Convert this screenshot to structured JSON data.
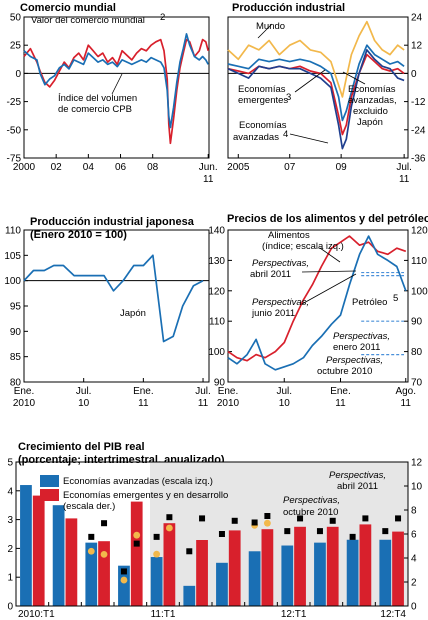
{
  "colors": {
    "blue": "#1a6fb4",
    "red": "#d8202c",
    "gold": "#f2b84b",
    "black": "#000000",
    "navy": "#1f3f8f",
    "shade": "#e6e6e6",
    "dash": "#4a90d9"
  },
  "chart_data": [
    {
      "id": "trade",
      "type": "line",
      "title": "Comercio mundial",
      "xlabel": "",
      "ylabel": "",
      "xlim": [
        2000,
        2011.5
      ],
      "ylim": [
        -75,
        50
      ],
      "y_ticks": [
        "50",
        "25",
        "0",
        "-25",
        "-50",
        "-75"
      ],
      "x_ticks": [
        "2000",
        "02",
        "04",
        "06",
        "08",
        "Jun."
      ],
      "x_ticks_line2": [
        "11"
      ],
      "grid": false,
      "series": [
        {
          "name": "Valor del comercio mundial",
          "color": "#d8202c",
          "x": [
            2000,
            2000.4,
            2000.8,
            2001,
            2001.3,
            2001.6,
            2001.9,
            2002.2,
            2002.5,
            2002.8,
            2003.1,
            2003.4,
            2003.7,
            2004,
            2004.3,
            2004.6,
            2004.9,
            2005.2,
            2005.5,
            2005.8,
            2006.1,
            2006.4,
            2006.7,
            2007,
            2007.3,
            2007.6,
            2007.9,
            2008.2,
            2008.5,
            2008.7,
            2008.9,
            2009,
            2009.1,
            2009.3,
            2009.5,
            2009.7,
            2009.9,
            2010.1,
            2010.3,
            2010.6,
            2010.9,
            2011.1,
            2011.3,
            2011.45
          ],
          "y": [
            15,
            22,
            10,
            2,
            -8,
            -12,
            -6,
            2,
            10,
            5,
            14,
            18,
            12,
            25,
            20,
            15,
            18,
            10,
            14,
            8,
            20,
            16,
            12,
            18,
            22,
            20,
            25,
            28,
            30,
            20,
            -5,
            -45,
            -62,
            -40,
            -15,
            5,
            18,
            30,
            28,
            15,
            20,
            30,
            28,
            20
          ]
        },
        {
          "name": "Índice del volumen de comercio CPB",
          "color": "#1a6fb4",
          "x": [
            2000,
            2000.4,
            2000.8,
            2001,
            2001.3,
            2001.6,
            2001.9,
            2002.2,
            2002.5,
            2002.8,
            2003.1,
            2003.4,
            2003.7,
            2004,
            2004.3,
            2004.6,
            2004.9,
            2005.2,
            2005.5,
            2005.8,
            2006.1,
            2006.4,
            2006.7,
            2007,
            2007.3,
            2007.6,
            2007.9,
            2008.2,
            2008.5,
            2008.7,
            2008.9,
            2009,
            2009.1,
            2009.3,
            2009.5,
            2009.7,
            2009.9,
            2010.1,
            2010.3,
            2010.6,
            2010.9,
            2011.1,
            2011.3,
            2011.45
          ],
          "y": [
            20,
            15,
            12,
            0,
            -10,
            -5,
            -2,
            5,
            8,
            4,
            12,
            10,
            8,
            18,
            14,
            10,
            12,
            8,
            10,
            6,
            12,
            10,
            8,
            10,
            12,
            10,
            14,
            12,
            10,
            5,
            -15,
            -38,
            -48,
            -30,
            -8,
            10,
            22,
            35,
            25,
            15,
            12,
            15,
            12,
            8
          ]
        }
      ],
      "annotations": [
        "Valor del comercio mundial",
        "2",
        "Índice del volumen",
        "de comercio CPB"
      ]
    },
    {
      "id": "ip",
      "type": "line",
      "title": "Producción industrial",
      "xlabel": "",
      "ylabel": "",
      "xlim": [
        2004.6,
        2011.6
      ],
      "ylim": [
        -36,
        24
      ],
      "y_ticks": [
        "24",
        "12",
        "0",
        "-12",
        "-24",
        "-36"
      ],
      "x_ticks": [
        "2005",
        "07",
        "09",
        "Jul."
      ],
      "x_ticks_line2": [
        "11"
      ],
      "grid": false,
      "series": [
        {
          "name": "Mundo",
          "color": "#1a6fb4",
          "x": [
            2004.6,
            2005,
            2005.4,
            2005.8,
            2006.2,
            2006.6,
            2007,
            2007.4,
            2007.8,
            2008.2,
            2008.6,
            2008.9,
            2009.05,
            2009.2,
            2009.4,
            2009.7,
            2010,
            2010.3,
            2010.6,
            2010.9,
            2011.2,
            2011.45
          ],
          "y": [
            4,
            3,
            2,
            6,
            5,
            6,
            5,
            6,
            5,
            3,
            0,
            -10,
            -20,
            -16,
            -8,
            4,
            12,
            8,
            6,
            4,
            5,
            3
          ]
        },
        {
          "name": "Economías emergentes",
          "color": "#f2b84b",
          "x": [
            2004.6,
            2005,
            2005.4,
            2005.8,
            2006.2,
            2006.6,
            2007,
            2007.4,
            2007.8,
            2008.2,
            2008.6,
            2008.9,
            2009.05,
            2009.2,
            2009.4,
            2009.7,
            2010,
            2010.3,
            2010.6,
            2010.9,
            2011.2,
            2011.45
          ],
          "y": [
            10,
            6,
            12,
            10,
            14,
            8,
            12,
            14,
            10,
            9,
            5,
            -5,
            -10,
            -2,
            8,
            16,
            22,
            14,
            10,
            8,
            12,
            10
          ]
        },
        {
          "name": "Economías avanzadas, excluido Japón",
          "color": "#d8202c",
          "x": [
            2004.6,
            2005,
            2005.4,
            2005.8,
            2006.2,
            2006.6,
            2007,
            2007.4,
            2007.8,
            2008.2,
            2008.6,
            2008.9,
            2009.05,
            2009.2,
            2009.4,
            2009.7,
            2010,
            2010.3,
            2010.6,
            2010.9,
            2011.2,
            2011.45
          ],
          "y": [
            2,
            1,
            0,
            3,
            2,
            3,
            2,
            3,
            1,
            0,
            -4,
            -18,
            -26,
            -22,
            -10,
            0,
            8,
            5,
            2,
            1,
            2,
            0
          ]
        },
        {
          "name": "Economías avanzadas",
          "color": "#1f3f8f",
          "x": [
            2004.6,
            2005,
            2005.4,
            2005.8,
            2006.2,
            2006.6,
            2007,
            2007.4,
            2007.8,
            2008.2,
            2008.6,
            2008.9,
            2009.05,
            2009.2,
            2009.4,
            2009.7,
            2010,
            2010.3,
            2010.6,
            2010.9,
            2011.2,
            2011.45
          ],
          "y": [
            2,
            0,
            -2,
            3,
            2,
            3,
            2,
            2,
            0,
            -2,
            -6,
            -22,
            -32,
            -28,
            -14,
            0,
            10,
            6,
            3,
            2,
            -2,
            -3
          ]
        }
      ],
      "annotations": [
        "Mundo",
        "Economías",
        "emergentes",
        "3",
        "Economías",
        "avanzadas",
        "4",
        "Economías",
        "avanzadas,",
        "excluido",
        "Japón"
      ]
    },
    {
      "id": "jpn",
      "type": "line",
      "title": "Producción industrial japonesa",
      "subtitle": "(Enero 2010 = 100)",
      "xlabel": "",
      "ylabel": "",
      "xlim": [
        2010.0,
        2011.55
      ],
      "ylim": [
        80,
        110
      ],
      "y_ticks": [
        "110",
        "105",
        "100",
        "95",
        "90",
        "85",
        "80"
      ],
      "x_ticks": [
        "Ene.",
        "Jul.",
        "Ene.",
        "Jul."
      ],
      "x_ticks_line2": [
        "2010",
        "10",
        "11",
        "11"
      ],
      "grid": false,
      "series": [
        {
          "name": "Japón",
          "color": "#1a6fb4",
          "x": [
            2010.0,
            2010.08,
            2010.17,
            2010.25,
            2010.33,
            2010.42,
            2010.5,
            2010.58,
            2010.67,
            2010.75,
            2010.83,
            2010.92,
            2011.0,
            2011.08,
            2011.17,
            2011.25,
            2011.33,
            2011.42,
            2011.5
          ],
          "y": [
            100,
            102,
            102,
            103,
            103,
            101,
            101,
            101,
            101,
            98,
            100,
            103,
            103,
            105,
            88,
            89,
            95,
            99,
            100
          ]
        }
      ],
      "annotations": [
        "Japón"
      ]
    },
    {
      "id": "food",
      "type": "line",
      "title": "Precios de los alimentos y del petróleo",
      "xlabel": "",
      "ylabel": "",
      "xlim": [
        2010.0,
        2011.6
      ],
      "ylim_left": [
        90,
        140
      ],
      "ylim_right": [
        70,
        120
      ],
      "y_ticks_left": [
        "140",
        "130",
        "120",
        "110",
        "100",
        "90"
      ],
      "y_ticks_right": [
        "120",
        "110",
        "100",
        "90",
        "80",
        "70"
      ],
      "x_ticks": [
        "Ene.",
        "Jul.",
        "Ene.",
        "Ago."
      ],
      "x_ticks_line2": [
        "2010",
        "10",
        "11",
        "11"
      ],
      "grid": false,
      "series": [
        {
          "name": "Alimentos (índice; escala izq.)",
          "color": "#d8202c",
          "axis": "left",
          "x": [
            2010.0,
            2010.08,
            2010.17,
            2010.25,
            2010.33,
            2010.42,
            2010.5,
            2010.58,
            2010.67,
            2010.75,
            2010.83,
            2010.92,
            2011.0,
            2011.08,
            2011.17,
            2011.25,
            2011.33,
            2011.42,
            2011.5,
            2011.58
          ],
          "y": [
            100,
            98,
            97,
            99,
            98,
            100,
            103,
            110,
            117,
            122,
            128,
            134,
            136,
            138,
            135,
            136,
            133,
            132,
            134,
            133
          ]
        },
        {
          "name": "Petróleo",
          "color": "#1a6fb4",
          "axis": "right",
          "x": [
            2010.0,
            2010.08,
            2010.17,
            2010.25,
            2010.33,
            2010.42,
            2010.5,
            2010.58,
            2010.67,
            2010.75,
            2010.83,
            2010.92,
            2011.0,
            2011.08,
            2011.17,
            2011.25,
            2011.33,
            2011.42,
            2011.5,
            2011.58
          ],
          "y": [
            78,
            76,
            79,
            84,
            76,
            74,
            75,
            76,
            78,
            82,
            85,
            89,
            92,
            102,
            112,
            118,
            112,
            110,
            108,
            100
          ]
        }
      ],
      "dashed_lines": [
        {
          "label": "Perspectivas, abril 2011",
          "axis": "right",
          "y": 106
        },
        {
          "label": "Perspectivas, junio 2011",
          "axis": "right",
          "y": 105
        },
        {
          "label": "Perspectivas, enero 2011",
          "axis": "right",
          "y": 90
        },
        {
          "label": "Perspectivas, octubre 2010",
          "axis": "right",
          "y": 79
        }
      ],
      "annotations": [
        "Alimentos",
        "(índice; escala izq.)",
        "Perspectivas,",
        "abril 2011",
        "Perspectivas,",
        "junio 2011",
        "Petróleo",
        "5",
        "Perspectivas,",
        "enero 2011",
        "Perspectivas,",
        "octubre 2010"
      ]
    },
    {
      "id": "gdp",
      "type": "bar",
      "title": "Crecimiento del PIB real",
      "subtitle": "(porcentaje; intertrimestral, anualizado)",
      "xlabel": "",
      "ylabel": "",
      "ylim_left": [
        0,
        5
      ],
      "ylim_right": [
        0,
        12
      ],
      "y_ticks_left": [
        "5",
        "4",
        "3",
        "2",
        "1",
        "0"
      ],
      "y_ticks_right": [
        "12",
        "10",
        "8",
        "6",
        "4",
        "2",
        "0"
      ],
      "x_ticks": [
        "2010:T1",
        "11:T1",
        "12:T1",
        "12:T4"
      ],
      "categories": [
        "2010:T1",
        "2010:T2",
        "2010:T3",
        "2010:T4",
        "2011:T1",
        "2011:T2",
        "2011:T3",
        "2011:T4",
        "2012:T1",
        "2012:T2",
        "2012:T3",
        "2012:T4"
      ],
      "series": [
        {
          "name": "Economías avanzadas (escala izq.)",
          "color": "#1a6fb4",
          "axis": "left",
          "values": [
            4.2,
            3.5,
            2.2,
            1.4,
            1.7,
            0.7,
            1.5,
            1.9,
            2.1,
            2.2,
            2.3,
            2.3
          ]
        },
        {
          "name": "Economías emergentes y en desarrollo (escala der.)",
          "color": "#d8202c",
          "axis": "right",
          "values": [
            9.2,
            7.3,
            5.4,
            8.7,
            6.9,
            5.5,
            6.3,
            6.4,
            6.6,
            6.6,
            6.8,
            6.2
          ]
        },
        {
          "name": "Perspectivas, abril 2011",
          "type": "marker",
          "color": "#000000",
          "adv": [
            null,
            null,
            2.4,
            1.2,
            2.4,
            1.9,
            2.5,
            2.9,
            2.6,
            2.6,
            2.4,
            2.6
          ],
          "eme": [
            null,
            null,
            6.9,
            5.2,
            7.4,
            7.3,
            7.1,
            7.5,
            7.3,
            7.1,
            7.3,
            7.3
          ]
        },
        {
          "name": "Perspectivas, octubre 2010",
          "type": "marker",
          "color": "#f2b84b",
          "adv": [
            null,
            null,
            1.9,
            0.9,
            1.8,
            null,
            null,
            2.8,
            null,
            null,
            null,
            null
          ],
          "eme": [
            null,
            null,
            4.3,
            5.9,
            6.5,
            null,
            null,
            6.9,
            null,
            null,
            null,
            null
          ]
        }
      ],
      "annotations": [
        "Perspectivas,",
        "abril 2011",
        "Perspectivas,",
        "octubre 2010"
      ]
    }
  ]
}
